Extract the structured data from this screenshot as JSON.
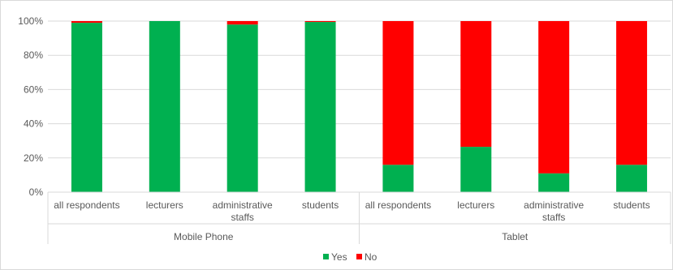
{
  "chart_data": {
    "type": "bar",
    "stacked": true,
    "percent": true,
    "groups": [
      {
        "label": "Mobile Phone",
        "categories": [
          "all respondents",
          "lecturers",
          "administrative staffs",
          "students"
        ]
      },
      {
        "label": "Tablet",
        "categories": [
          "all respondents",
          "lecturers",
          "administrative staffs",
          "students"
        ]
      }
    ],
    "series": [
      {
        "name": "Yes",
        "color": "#00b050",
        "values": [
          99,
          100,
          98,
          99.5,
          16,
          26.5,
          11,
          16
        ]
      },
      {
        "name": "No",
        "color": "#ff0000",
        "values": [
          1,
          0,
          2,
          0.5,
          84,
          73.5,
          89,
          84
        ]
      }
    ],
    "y_ticks": [
      "0%",
      "20%",
      "40%",
      "60%",
      "80%",
      "100%"
    ],
    "ylim": [
      0,
      100
    ],
    "grid": true,
    "legend": {
      "position": "bottom"
    }
  }
}
